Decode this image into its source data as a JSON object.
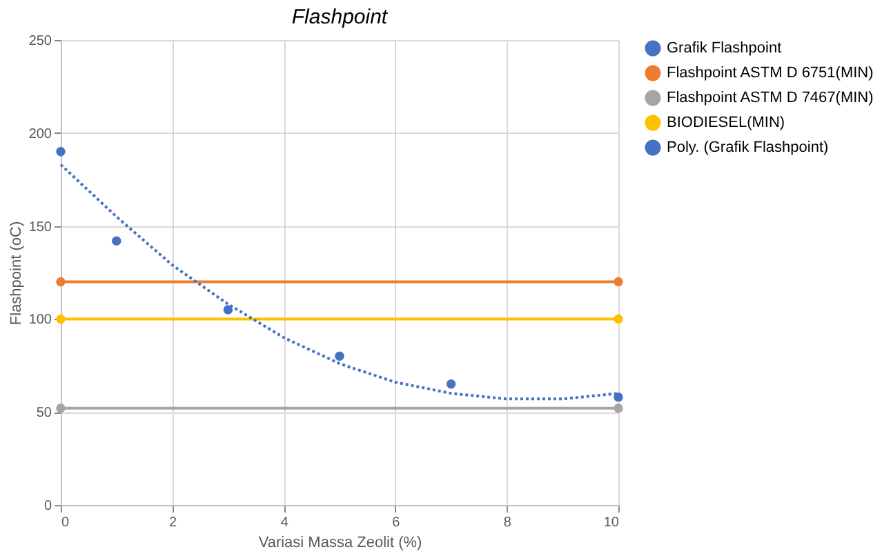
{
  "chart_data": {
    "type": "scatter",
    "title": "Flashpoint",
    "xlabel": "Variasi Massa Zeolit (%)",
    "ylabel": "Flashpoint  (oC)",
    "xlim": [
      0,
      10
    ],
    "xticks": [
      0,
      2,
      4,
      6,
      8,
      10
    ],
    "ylim": [
      0,
      250
    ],
    "yticks": [
      0,
      50,
      100,
      150,
      200,
      250
    ],
    "grid": true,
    "legend": "right",
    "series": [
      {
        "name": "Grafik Flashpoint",
        "color": "#4472c4",
        "marker": "circle",
        "x": [
          0,
          1,
          3,
          5,
          7,
          10
        ],
        "values": [
          190,
          142,
          105,
          80,
          65,
          58
        ]
      },
      {
        "name": "Flashpoint ASTM D 6751(MIN)",
        "type": "line",
        "color": "#ed7d31",
        "marker": "circle",
        "line_style": "solid",
        "x": [
          0,
          10
        ],
        "values": [
          120,
          120
        ]
      },
      {
        "name": "Flashpoint ASTM D 7467(MIN)",
        "type": "line",
        "color": "#a5a5a5",
        "marker": "circle",
        "line_style": "solid",
        "x": [
          0,
          10
        ],
        "values": [
          52,
          52
        ]
      },
      {
        "name": "BIODIESEL(MIN)",
        "type": "line",
        "color": "#ffc000",
        "marker": "circle",
        "line_style": "solid",
        "x": [
          0,
          10
        ],
        "values": [
          100,
          100
        ]
      },
      {
        "name": "Poly. (Grafik Flashpoint)",
        "type": "line",
        "color": "#4472c4",
        "marker": "none",
        "line_style": "dotted",
        "x": [
          0,
          1,
          2,
          3,
          4,
          5,
          6,
          7,
          8,
          9,
          10
        ],
        "values": [
          183,
          155,
          129,
          108,
          90,
          76,
          66,
          60,
          57,
          57,
          60
        ]
      }
    ]
  }
}
